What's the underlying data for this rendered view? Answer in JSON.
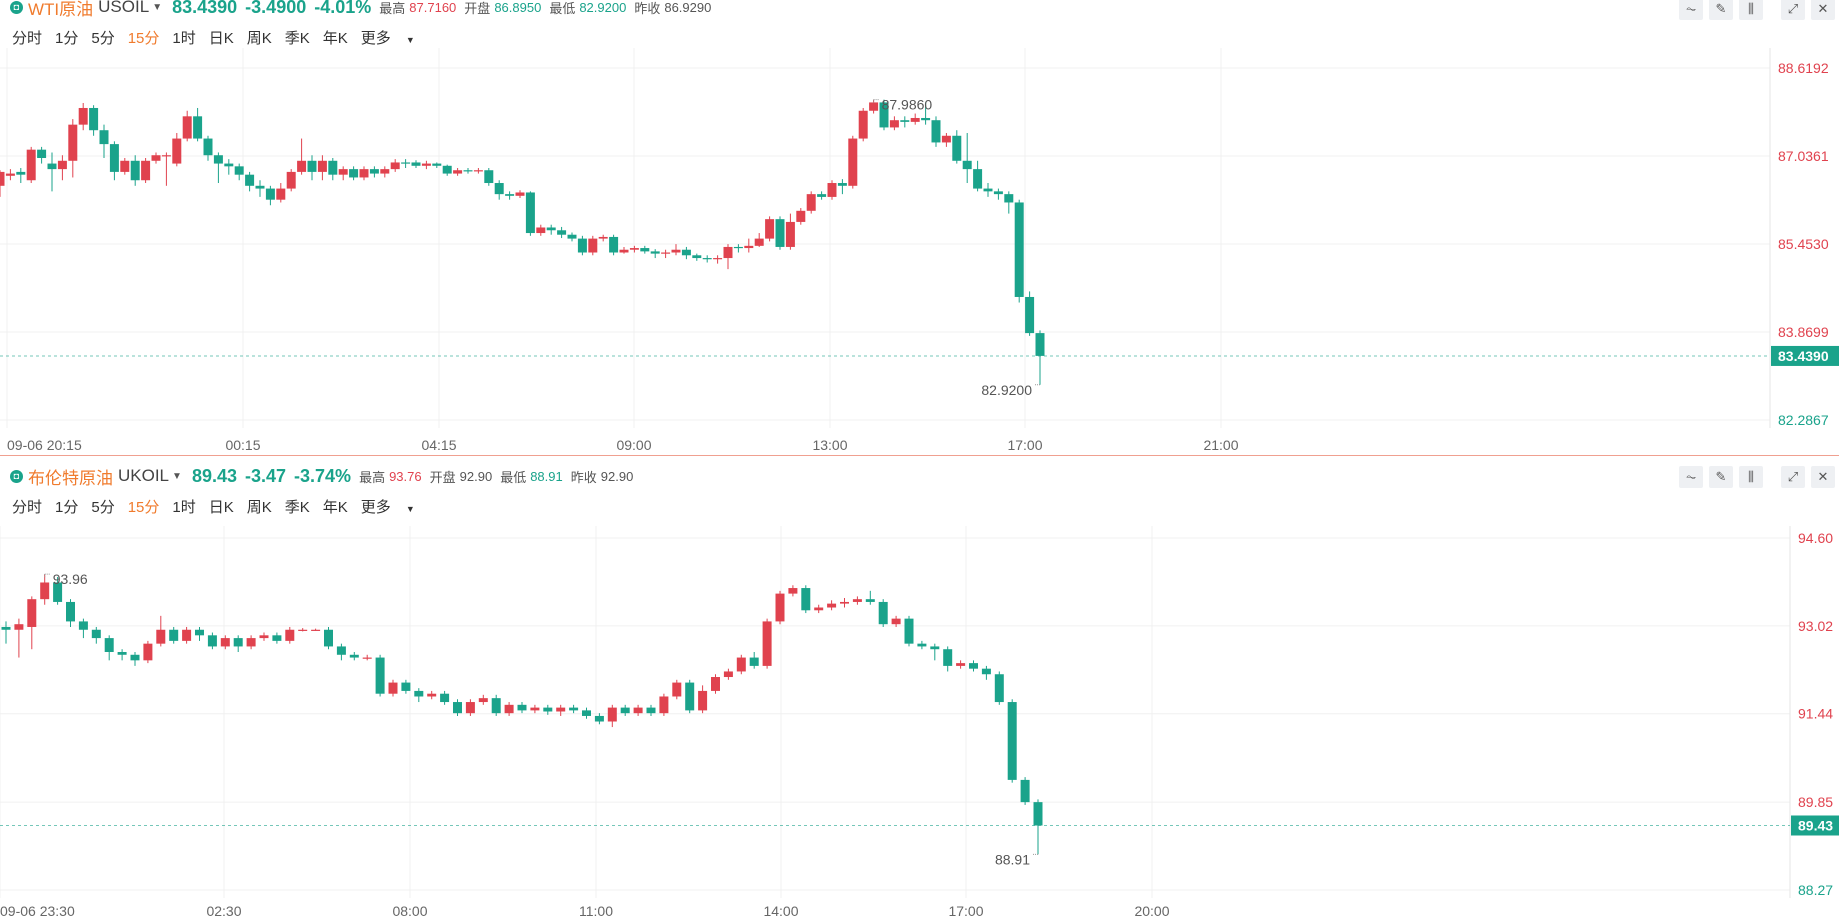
{
  "colors": {
    "up": "#e0424e",
    "down": "#1aa38b",
    "accent": "#f07b2d"
  },
  "periods": [
    "分时",
    "1分",
    "5分",
    "15分",
    "1时",
    "日K",
    "周K",
    "季K",
    "年K",
    "更多"
  ],
  "active_period": "15分",
  "tool_icons": [
    "indicator-icon",
    "draw-icon",
    "candle-type-icon",
    "expand-icon",
    "close-icon"
  ],
  "panels": [
    {
      "name": "WTI原油",
      "code": "USOIL",
      "price": "83.4390",
      "change": "-3.4900",
      "change_pct": "-4.01%",
      "high_label": "最高",
      "high": "87.7160",
      "open_label": "开盘",
      "open": "86.8950",
      "low_label": "最低",
      "low": "82.9200",
      "prev_label": "昨收",
      "prev": "86.9290"
    },
    {
      "name": "布伦特原油",
      "code": "UKOIL",
      "price": "89.43",
      "change": "-3.47",
      "change_pct": "-3.74%",
      "high_label": "最高",
      "high": "93.76",
      "open_label": "开盘",
      "open": "92.90",
      "low_label": "最低",
      "low": "88.91",
      "prev_label": "昨收",
      "prev": "92.90"
    }
  ],
  "chart_data": [
    {
      "type": "candlestick",
      "symbol": "USOIL",
      "y_ticks": [
        "88.6192",
        "87.0361",
        "85.4530",
        "83.8699",
        "82.2867"
      ],
      "y_tick_values": [
        88.6192,
        87.0361,
        85.453,
        83.8699,
        82.2867
      ],
      "last_price": "83.4390",
      "last_price_value": 83.439,
      "x_ticks": [
        "09-06 20:15",
        "00:15",
        "04:15",
        "09:00",
        "13:00",
        "17:00",
        "21:00"
      ],
      "annotation_high": "87.9860",
      "annotation_low": "82.9200",
      "candles": [
        [
          86.5,
          86.75,
          86.78,
          86.3
        ],
        [
          86.68,
          86.72,
          86.8,
          86.6
        ],
        [
          86.75,
          86.7,
          86.82,
          86.55
        ],
        [
          86.6,
          87.15,
          87.2,
          86.55
        ],
        [
          87.15,
          87.0,
          87.2,
          86.9
        ],
        [
          86.9,
          86.8,
          87.1,
          86.4
        ],
        [
          86.8,
          86.95,
          87.05,
          86.6
        ],
        [
          86.95,
          87.6,
          87.7,
          86.65
        ],
        [
          87.6,
          87.9,
          87.99,
          87.5
        ],
        [
          87.9,
          87.5,
          87.95,
          87.4
        ],
        [
          87.5,
          87.25,
          87.6,
          87.0
        ],
        [
          87.25,
          86.75,
          87.3,
          86.6
        ],
        [
          86.75,
          86.95,
          87.0,
          86.7
        ],
        [
          86.95,
          86.6,
          87.05,
          86.5
        ],
        [
          86.6,
          86.95,
          87.0,
          86.55
        ],
        [
          86.95,
          87.05,
          87.1,
          86.9
        ],
        [
          87.05,
          87.05,
          87.1,
          86.5
        ],
        [
          86.9,
          87.35,
          87.45,
          86.85
        ],
        [
          87.35,
          87.75,
          87.85,
          87.3
        ],
        [
          87.75,
          87.35,
          87.9,
          87.3
        ],
        [
          87.35,
          87.05,
          87.4,
          86.95
        ],
        [
          87.05,
          86.9,
          87.1,
          86.55
        ],
        [
          86.9,
          86.85,
          86.98,
          86.7
        ],
        [
          86.85,
          86.7,
          86.9,
          86.6
        ],
        [
          86.7,
          86.5,
          86.75,
          86.4
        ],
        [
          86.5,
          86.45,
          86.6,
          86.3
        ],
        [
          86.45,
          86.25,
          86.5,
          86.15
        ],
        [
          86.25,
          86.45,
          86.55,
          86.2
        ],
        [
          86.45,
          86.75,
          86.8,
          86.4
        ],
        [
          86.75,
          86.95,
          87.35,
          86.7
        ],
        [
          86.95,
          86.75,
          87.05,
          86.6
        ],
        [
          86.75,
          86.95,
          87.05,
          86.6
        ],
        [
          86.95,
          86.7,
          87.0,
          86.6
        ],
        [
          86.7,
          86.8,
          86.85,
          86.6
        ],
        [
          86.8,
          86.65,
          86.85,
          86.6
        ],
        [
          86.65,
          86.8,
          86.85,
          86.6
        ],
        [
          86.8,
          86.72,
          86.85,
          86.65
        ],
        [
          86.72,
          86.8,
          86.85,
          86.65
        ],
        [
          86.8,
          86.92,
          86.98,
          86.75
        ],
        [
          86.92,
          86.9,
          86.98,
          86.82
        ],
        [
          86.92,
          86.86,
          86.96,
          86.82
        ],
        [
          86.86,
          86.9,
          86.95,
          86.8
        ],
        [
          86.9,
          86.86,
          86.92,
          86.82
        ],
        [
          86.86,
          86.72,
          86.88,
          86.68
        ],
        [
          86.72,
          86.78,
          86.82,
          86.68
        ],
        [
          86.78,
          86.76,
          86.82,
          86.72
        ],
        [
          86.76,
          86.78,
          86.82,
          86.72
        ],
        [
          86.78,
          86.55,
          86.82,
          86.5
        ],
        [
          86.55,
          86.35,
          86.6,
          86.25
        ],
        [
          86.35,
          86.32,
          86.4,
          86.25
        ],
        [
          86.32,
          86.38,
          86.42,
          86.28
        ],
        [
          86.38,
          85.65,
          86.4,
          85.6
        ],
        [
          85.65,
          85.75,
          85.8,
          85.6
        ],
        [
          85.75,
          85.7,
          85.8,
          85.62
        ],
        [
          85.7,
          85.62,
          85.76,
          85.56
        ],
        [
          85.62,
          85.55,
          85.66,
          85.5
        ],
        [
          85.55,
          85.3,
          85.6,
          85.25
        ],
        [
          85.3,
          85.55,
          85.6,
          85.25
        ],
        [
          85.55,
          85.58,
          85.62,
          85.5
        ],
        [
          85.58,
          85.3,
          85.62,
          85.25
        ],
        [
          85.3,
          85.35,
          85.4,
          85.28
        ],
        [
          85.35,
          85.38,
          85.42,
          85.3
        ],
        [
          85.38,
          85.32,
          85.42,
          85.28
        ],
        [
          85.32,
          85.28,
          85.36,
          85.2
        ],
        [
          85.28,
          85.3,
          85.35,
          85.2
        ],
        [
          85.3,
          85.35,
          85.45,
          85.25
        ],
        [
          85.35,
          85.25,
          85.4,
          85.18
        ],
        [
          85.25,
          85.2,
          85.28,
          85.15
        ],
        [
          85.2,
          85.18,
          85.25,
          85.12
        ],
        [
          85.18,
          85.2,
          85.25,
          85.1
        ],
        [
          85.2,
          85.4,
          85.45,
          85.0
        ],
        [
          85.4,
          85.38,
          85.45,
          85.3
        ],
        [
          85.38,
          85.42,
          85.55,
          85.3
        ],
        [
          85.42,
          85.55,
          85.65,
          85.4
        ],
        [
          85.55,
          85.9,
          85.95,
          85.5
        ],
        [
          85.9,
          85.4,
          85.95,
          85.35
        ],
        [
          85.4,
          85.85,
          86.0,
          85.35
        ],
        [
          85.85,
          86.05,
          86.1,
          85.8
        ],
        [
          86.05,
          86.35,
          86.4,
          86.0
        ],
        [
          86.35,
          86.3,
          86.4,
          86.25
        ],
        [
          86.3,
          86.55,
          86.6,
          86.25
        ],
        [
          86.55,
          86.5,
          86.62,
          86.35
        ],
        [
          86.5,
          87.35,
          87.4,
          86.45
        ],
        [
          87.35,
          87.85,
          87.9,
          87.3
        ],
        [
          87.85,
          88.0,
          88.05,
          87.8
        ],
        [
          88.0,
          87.55,
          88.05,
          87.5
        ],
        [
          87.55,
          87.68,
          87.75,
          87.5
        ],
        [
          87.68,
          87.65,
          87.75,
          87.55
        ],
        [
          87.65,
          87.72,
          87.8,
          87.6
        ],
        [
          87.72,
          87.68,
          88.0,
          87.6
        ],
        [
          87.68,
          87.28,
          87.75,
          87.2
        ],
        [
          87.28,
          87.4,
          87.45,
          87.2
        ],
        [
          87.4,
          86.95,
          87.5,
          86.9
        ],
        [
          86.95,
          86.8,
          87.45,
          86.55
        ],
        [
          86.8,
          86.45,
          86.95,
          86.4
        ],
        [
          86.45,
          86.4,
          86.55,
          86.3
        ],
        [
          86.4,
          86.35,
          86.45,
          86.25
        ],
        [
          86.35,
          86.2,
          86.4,
          86.0
        ],
        [
          86.2,
          84.5,
          86.25,
          84.4
        ],
        [
          84.5,
          83.85,
          84.6,
          83.8
        ],
        [
          83.85,
          83.44,
          83.9,
          82.92
        ]
      ]
    },
    {
      "type": "candlestick",
      "symbol": "UKOIL",
      "y_ticks": [
        "94.60",
        "93.02",
        "91.44",
        "89.85",
        "88.27"
      ],
      "y_tick_values": [
        94.6,
        93.02,
        91.44,
        89.85,
        88.27
      ],
      "last_price": "89.43",
      "last_price_value": 89.43,
      "x_ticks": [
        "09-06 23:30",
        "02:30",
        "08:00",
        "11:00",
        "14:00",
        "17:00",
        "20:00"
      ],
      "annotation_high": "93.96",
      "annotation_low": "88.91",
      "candles": [
        [
          93.0,
          92.95,
          93.1,
          92.7
        ],
        [
          92.95,
          93.05,
          93.15,
          92.45
        ],
        [
          93.0,
          93.5,
          93.55,
          92.6
        ],
        [
          93.5,
          93.8,
          93.95,
          93.4
        ],
        [
          93.8,
          93.45,
          93.9,
          93.4
        ],
        [
          93.45,
          93.1,
          93.5,
          93.0
        ],
        [
          93.1,
          92.95,
          93.15,
          92.8
        ],
        [
          92.95,
          92.8,
          93.0,
          92.7
        ],
        [
          92.8,
          92.55,
          92.85,
          92.4
        ],
        [
          92.55,
          92.5,
          92.6,
          92.4
        ],
        [
          92.5,
          92.4,
          92.55,
          92.3
        ],
        [
          92.4,
          92.7,
          92.75,
          92.35
        ],
        [
          92.7,
          92.95,
          93.2,
          92.65
        ],
        [
          92.95,
          92.75,
          93.0,
          92.7
        ],
        [
          92.75,
          92.95,
          93.0,
          92.7
        ],
        [
          92.95,
          92.85,
          93.0,
          92.75
        ],
        [
          92.85,
          92.65,
          92.9,
          92.6
        ],
        [
          92.65,
          92.8,
          92.85,
          92.6
        ],
        [
          92.8,
          92.65,
          92.85,
          92.55
        ],
        [
          92.65,
          92.8,
          92.85,
          92.6
        ],
        [
          92.8,
          92.85,
          92.9,
          92.75
        ],
        [
          92.85,
          92.75,
          92.9,
          92.7
        ],
        [
          92.75,
          92.95,
          93.0,
          92.7
        ],
        [
          92.95,
          92.95,
          92.98,
          92.92
        ],
        [
          92.95,
          92.95,
          92.97,
          92.93
        ],
        [
          92.95,
          92.65,
          93.0,
          92.6
        ],
        [
          92.65,
          92.5,
          92.7,
          92.4
        ],
        [
          92.5,
          92.45,
          92.55,
          92.4
        ],
        [
          92.45,
          92.45,
          92.5,
          92.4
        ],
        [
          92.45,
          91.8,
          92.5,
          91.75
        ],
        [
          91.8,
          92.0,
          92.05,
          91.75
        ],
        [
          92.0,
          91.85,
          92.05,
          91.8
        ],
        [
          91.85,
          91.75,
          91.9,
          91.65
        ],
        [
          91.75,
          91.8,
          91.85,
          91.7
        ],
        [
          91.8,
          91.65,
          91.85,
          91.6
        ],
        [
          91.65,
          91.45,
          91.7,
          91.4
        ],
        [
          91.45,
          91.65,
          91.7,
          91.4
        ],
        [
          91.65,
          91.72,
          91.78,
          91.6
        ],
        [
          91.72,
          91.45,
          91.78,
          91.4
        ],
        [
          91.45,
          91.6,
          91.65,
          91.4
        ],
        [
          91.6,
          91.5,
          91.65,
          91.45
        ],
        [
          91.5,
          91.55,
          91.6,
          91.45
        ],
        [
          91.55,
          91.48,
          91.6,
          91.42
        ],
        [
          91.48,
          91.55,
          91.6,
          91.4
        ],
        [
          91.55,
          91.5,
          91.6,
          91.45
        ],
        [
          91.5,
          91.4,
          91.55,
          91.35
        ],
        [
          91.4,
          91.3,
          91.45,
          91.25
        ],
        [
          91.3,
          91.55,
          91.6,
          91.2
        ],
        [
          91.55,
          91.45,
          91.6,
          91.4
        ],
        [
          91.45,
          91.55,
          91.6,
          91.4
        ],
        [
          91.55,
          91.45,
          91.6,
          91.4
        ],
        [
          91.45,
          91.75,
          91.8,
          91.4
        ],
        [
          91.75,
          92.0,
          92.05,
          91.7
        ],
        [
          92.0,
          91.5,
          92.05,
          91.45
        ],
        [
          91.5,
          91.85,
          91.95,
          91.45
        ],
        [
          91.85,
          92.1,
          92.15,
          91.8
        ],
        [
          92.1,
          92.2,
          92.25,
          92.05
        ],
        [
          92.2,
          92.45,
          92.5,
          92.15
        ],
        [
          92.45,
          92.3,
          92.55,
          92.25
        ],
        [
          92.3,
          93.1,
          93.15,
          92.25
        ],
        [
          93.1,
          93.6,
          93.65,
          93.05
        ],
        [
          93.6,
          93.7,
          93.75,
          93.55
        ],
        [
          93.7,
          93.3,
          93.75,
          93.25
        ],
        [
          93.3,
          93.35,
          93.4,
          93.25
        ],
        [
          93.35,
          93.42,
          93.48,
          93.3
        ],
        [
          93.42,
          93.45,
          93.52,
          93.35
        ],
        [
          93.45,
          93.5,
          93.55,
          93.4
        ],
        [
          93.5,
          93.45,
          93.65,
          93.4
        ],
        [
          93.45,
          93.05,
          93.5,
          93.0
        ],
        [
          93.05,
          93.15,
          93.2,
          93.0
        ],
        [
          93.15,
          92.7,
          93.2,
          92.65
        ],
        [
          92.7,
          92.65,
          92.75,
          92.6
        ],
        [
          92.65,
          92.6,
          92.7,
          92.4
        ],
        [
          92.6,
          92.3,
          92.65,
          92.2
        ],
        [
          92.3,
          92.35,
          92.4,
          92.25
        ],
        [
          92.35,
          92.25,
          92.4,
          92.2
        ],
        [
          92.25,
          92.15,
          92.3,
          92.05
        ],
        [
          92.15,
          91.65,
          92.2,
          91.6
        ],
        [
          91.65,
          90.25,
          91.7,
          90.2
        ],
        [
          90.25,
          89.85,
          90.3,
          89.8
        ],
        [
          89.85,
          89.43,
          89.9,
          88.91
        ]
      ]
    }
  ]
}
